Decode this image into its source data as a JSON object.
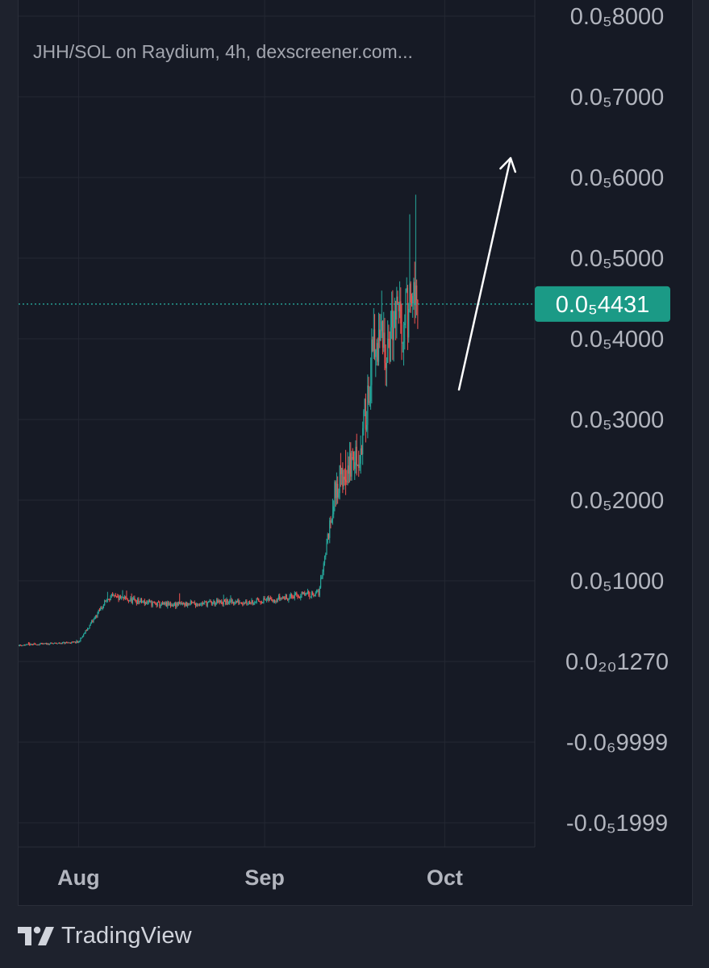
{
  "chart_data": {
    "type": "candlestick",
    "title": "JHH/SOL on Raydium, 4h, dexscreener.com...",
    "y_tick_labels": [
      "0.0₅8000",
      "0.0₅7000",
      "0.0₅6000",
      "0.0₅5000",
      "0.0₅4000",
      "0.0₅3000",
      "0.0₅2000",
      "0.0₅1000",
      "0.0₂₀1270",
      "-0.0₆9999",
      "-0.0₅1999"
    ],
    "y_tick_values": [
      8e-06,
      7e-06,
      6e-06,
      5e-06,
      4e-06,
      3e-06,
      2e-06,
      1e-06,
      0.0,
      -1e-06,
      -2e-06
    ],
    "ylim": [
      -2.3e-06,
      8.2e-06
    ],
    "x_tick_labels": [
      "Aug",
      "Sep",
      "Oct"
    ],
    "x_tick_dates": [
      "2024-08-01",
      "2024-09-01",
      "2024-10-01"
    ],
    "xlim": [
      "2024-07-22",
      "2024-10-16"
    ],
    "last_price_label": "0.0₅4431",
    "last_price": 4.431e-06,
    "data_start": "2024-07-22",
    "data_end": "2024-09-26",
    "key_points": [
      {
        "date": "2024-07-22",
        "price": 2e-07
      },
      {
        "date": "2024-08-01",
        "price": 2.4e-07
      },
      {
        "date": "2024-08-06",
        "price": 8e-07
      },
      {
        "date": "2024-08-15",
        "price": 7e-07
      },
      {
        "date": "2024-08-31",
        "price": 7.5e-07
      },
      {
        "date": "2024-09-10",
        "price": 8.5e-07
      },
      {
        "date": "2024-09-13",
        "price": 2.2e-06
      },
      {
        "date": "2024-09-17",
        "price": 2.6e-06
      },
      {
        "date": "2024-09-19",
        "price": 3.8e-06
      },
      {
        "date": "2024-09-26",
        "price": 4.431e-06
      }
    ],
    "candle_colors": {
      "up": "#26a69a",
      "down": "#ef5350"
    },
    "annotation": {
      "type": "arrow",
      "color": "#ffffff",
      "direction": "up"
    },
    "grid": true
  },
  "footer": {
    "brand": "TradingView"
  }
}
